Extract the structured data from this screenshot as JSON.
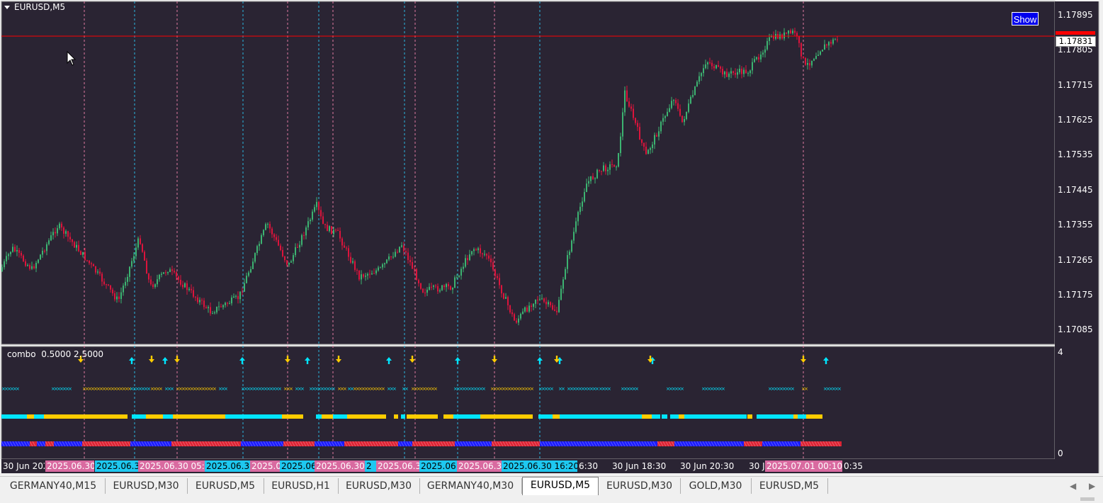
{
  "chart": {
    "symbol_title": "EURUSD,M5",
    "show_button": "Show",
    "price_labels": [
      "1.17895",
      "1.17805",
      "1.17715",
      "1.17625",
      "1.17535",
      "1.17445",
      "1.17355",
      "1.17265",
      "1.17175",
      "1.17085"
    ],
    "current_price": "1.17831",
    "indicator_title": "combo  0.5000 2.5000",
    "indicator_max": "4",
    "indicator_min": "0",
    "colors": {
      "background": "#2a2433",
      "bull_candle": "#3cb371",
      "bear_candle": "#dc143c",
      "price_line": "#ff0000",
      "signal_up": "#00e5ff",
      "signal_down": "#ffcc00",
      "band_blue": "#1a1aff",
      "band_red": "#dd2233"
    }
  },
  "time_axis": [
    {
      "text": "30 Jun 202",
      "style": "plain"
    },
    {
      "text": "2025.06.30",
      "style": "pink"
    },
    {
      "text": "2025.06.3",
      "style": "cyan"
    },
    {
      "text": "2025.06.30 05:",
      "style": "pink"
    },
    {
      "text": "2025.06.3",
      "style": "cyan"
    },
    {
      "text": "2025.0",
      "style": "pink"
    },
    {
      "text": "2025.06",
      "style": "cyan"
    },
    {
      "text": "2025.06.30",
      "style": "pink"
    },
    {
      "text": "2",
      "style": "cyan"
    },
    {
      "text": "2025.06.3",
      "style": "pink"
    },
    {
      "text": "2025.06",
      "style": "cyan"
    },
    {
      "text": "2025.06.3",
      "style": "pink"
    },
    {
      "text": "2025.06.30 16:20",
      "style": "cyan"
    },
    {
      "text": "6:30",
      "style": "plain"
    },
    {
      "text": "30 Jun 18:30",
      "style": "plain"
    },
    {
      "text": "30 Jun 20:30",
      "style": "plain"
    },
    {
      "text": "30 J",
      "style": "plain"
    },
    {
      "text": "2025.07.01 00:10",
      "style": "pink"
    },
    {
      "text": "0:35",
      "style": "plain"
    }
  ],
  "tabs": [
    {
      "label": "GERMANY40,M15",
      "active": false
    },
    {
      "label": "EURUSD,M30",
      "active": false
    },
    {
      "label": "EURUSD,M5",
      "active": false
    },
    {
      "label": "EURUSD,H1",
      "active": false
    },
    {
      "label": "EURUSD,M30",
      "active": false
    },
    {
      "label": "GERMANY40,M30",
      "active": false
    },
    {
      "label": "EURUSD,M5",
      "active": true
    },
    {
      "label": "EURUSD,M30",
      "active": false
    },
    {
      "label": "GOLD,M30",
      "active": false
    },
    {
      "label": "EURUSD,M5",
      "active": false
    }
  ],
  "icons": {
    "symbol_menu": "triangle-down-icon",
    "mouse_cursor": "arrow-cursor-icon",
    "tab_prev": "chevron-left-icon",
    "tab_next": "chevron-right-icon",
    "signal_up": "arrow-up-icon",
    "signal_down": "arrow-down-icon"
  }
}
